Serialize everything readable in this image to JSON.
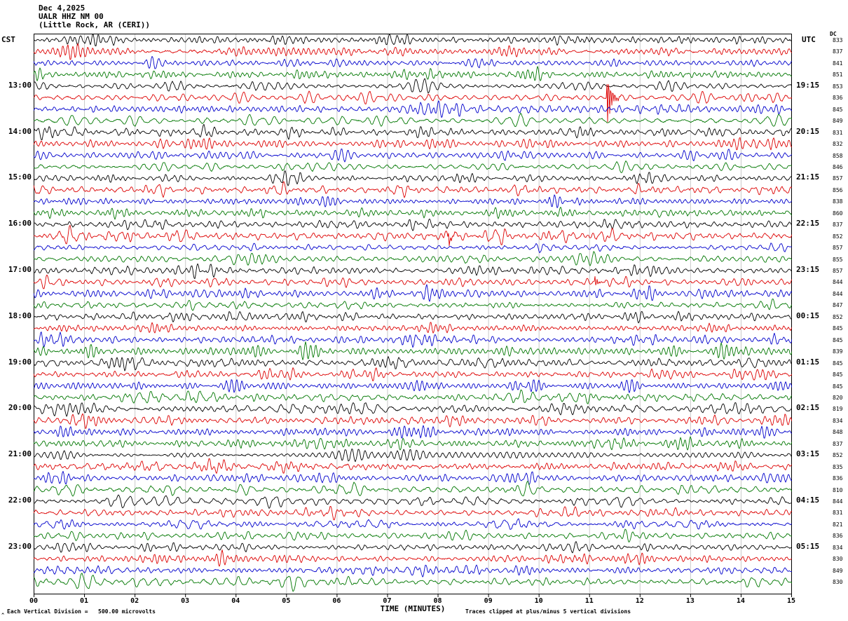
{
  "header": {
    "date": "Dec 4,2025",
    "station": "UALR HHZ NM 00",
    "location": "(Little Rock, AR (CERI))"
  },
  "axes": {
    "left_header": "CST",
    "right_header": "UTC",
    "dc_header": "DC",
    "left_labels": [
      {
        "row": 4,
        "text": "13:00"
      },
      {
        "row": 8,
        "text": "14:00"
      },
      {
        "row": 12,
        "text": "15:00"
      },
      {
        "row": 16,
        "text": "16:00"
      },
      {
        "row": 20,
        "text": "17:00"
      },
      {
        "row": 24,
        "text": "18:00"
      },
      {
        "row": 28,
        "text": "19:00"
      },
      {
        "row": 32,
        "text": "20:00"
      },
      {
        "row": 36,
        "text": "21:00"
      },
      {
        "row": 40,
        "text": "22:00"
      },
      {
        "row": 44,
        "text": "23:00"
      }
    ],
    "right_labels": [
      {
        "row": 4,
        "text": "19:15"
      },
      {
        "row": 8,
        "text": "20:15"
      },
      {
        "row": 12,
        "text": "21:15"
      },
      {
        "row": 16,
        "text": "22:15"
      },
      {
        "row": 20,
        "text": "23:15"
      },
      {
        "row": 24,
        "text": "00:15"
      },
      {
        "row": 28,
        "text": "01:15"
      },
      {
        "row": 32,
        "text": "02:15"
      },
      {
        "row": 36,
        "text": "03:15"
      },
      {
        "row": 40,
        "text": "04:15"
      },
      {
        "row": 44,
        "text": "05:15"
      }
    ],
    "x_ticks": [
      "00",
      "01",
      "02",
      "03",
      "04",
      "05",
      "06",
      "07",
      "08",
      "09",
      "10",
      "11",
      "12",
      "13",
      "14",
      "15"
    ],
    "x_label": "TIME (MINUTES)"
  },
  "dc_values": [
    833,
    837,
    841,
    851,
    853,
    836,
    845,
    849,
    831,
    832,
    858,
    846,
    857,
    856,
    838,
    860,
    837,
    852,
    857,
    855,
    857,
    844,
    844,
    847,
    852,
    845,
    845,
    839,
    845,
    845,
    845,
    820,
    819,
    834,
    848,
    837,
    852,
    835,
    836,
    810,
    844,
    831,
    821,
    836,
    834,
    830,
    849,
    830
  ],
  "footer": {
    "scale_note": "Each Vertical Division =   500.00 microvolts",
    "clip_note": "Traces clipped at plus/minus 5 vertical divisions",
    "corner_mark": "^"
  },
  "chart_data": {
    "type": "line",
    "title": "UALR HHZ NM 00 helicorder, Dec 4,2025, Little Rock AR (CERI)",
    "xlabel": "TIME (MINUTES)",
    "x_range_minutes": [
      0,
      15
    ],
    "minutes_per_line": 15,
    "rows": 48,
    "start_time_cst": "12:00",
    "end_time_cst": "24:00",
    "trace_color_cycle": [
      "#000000",
      "#dd0000",
      "#0000cc",
      "#007700"
    ],
    "vertical_division_microvolts": 500.0,
    "clip_divisions": 5,
    "grid": true,
    "events": [
      {
        "row": 5,
        "minute": 11.33,
        "amplitude_divisions": 8.0,
        "decay_minutes": 0.07,
        "note": "large clipped red spike on 13:15 CST trace"
      },
      {
        "row": 17,
        "minute": 8.2,
        "amplitude_divisions": 1.7,
        "decay_minutes": 0.05,
        "note": "small spike on 16:15 CST trace"
      },
      {
        "row": 21,
        "minute": 11.1,
        "amplitude_divisions": 1.3,
        "decay_minutes": 0.05,
        "note": "small burst on 17:15 CST trace"
      }
    ],
    "note": "Continuous background seismic noise traces; 48 lines of 15 minutes each, colors cycling black/red/blue/green; individual samples not resolvable from image"
  }
}
